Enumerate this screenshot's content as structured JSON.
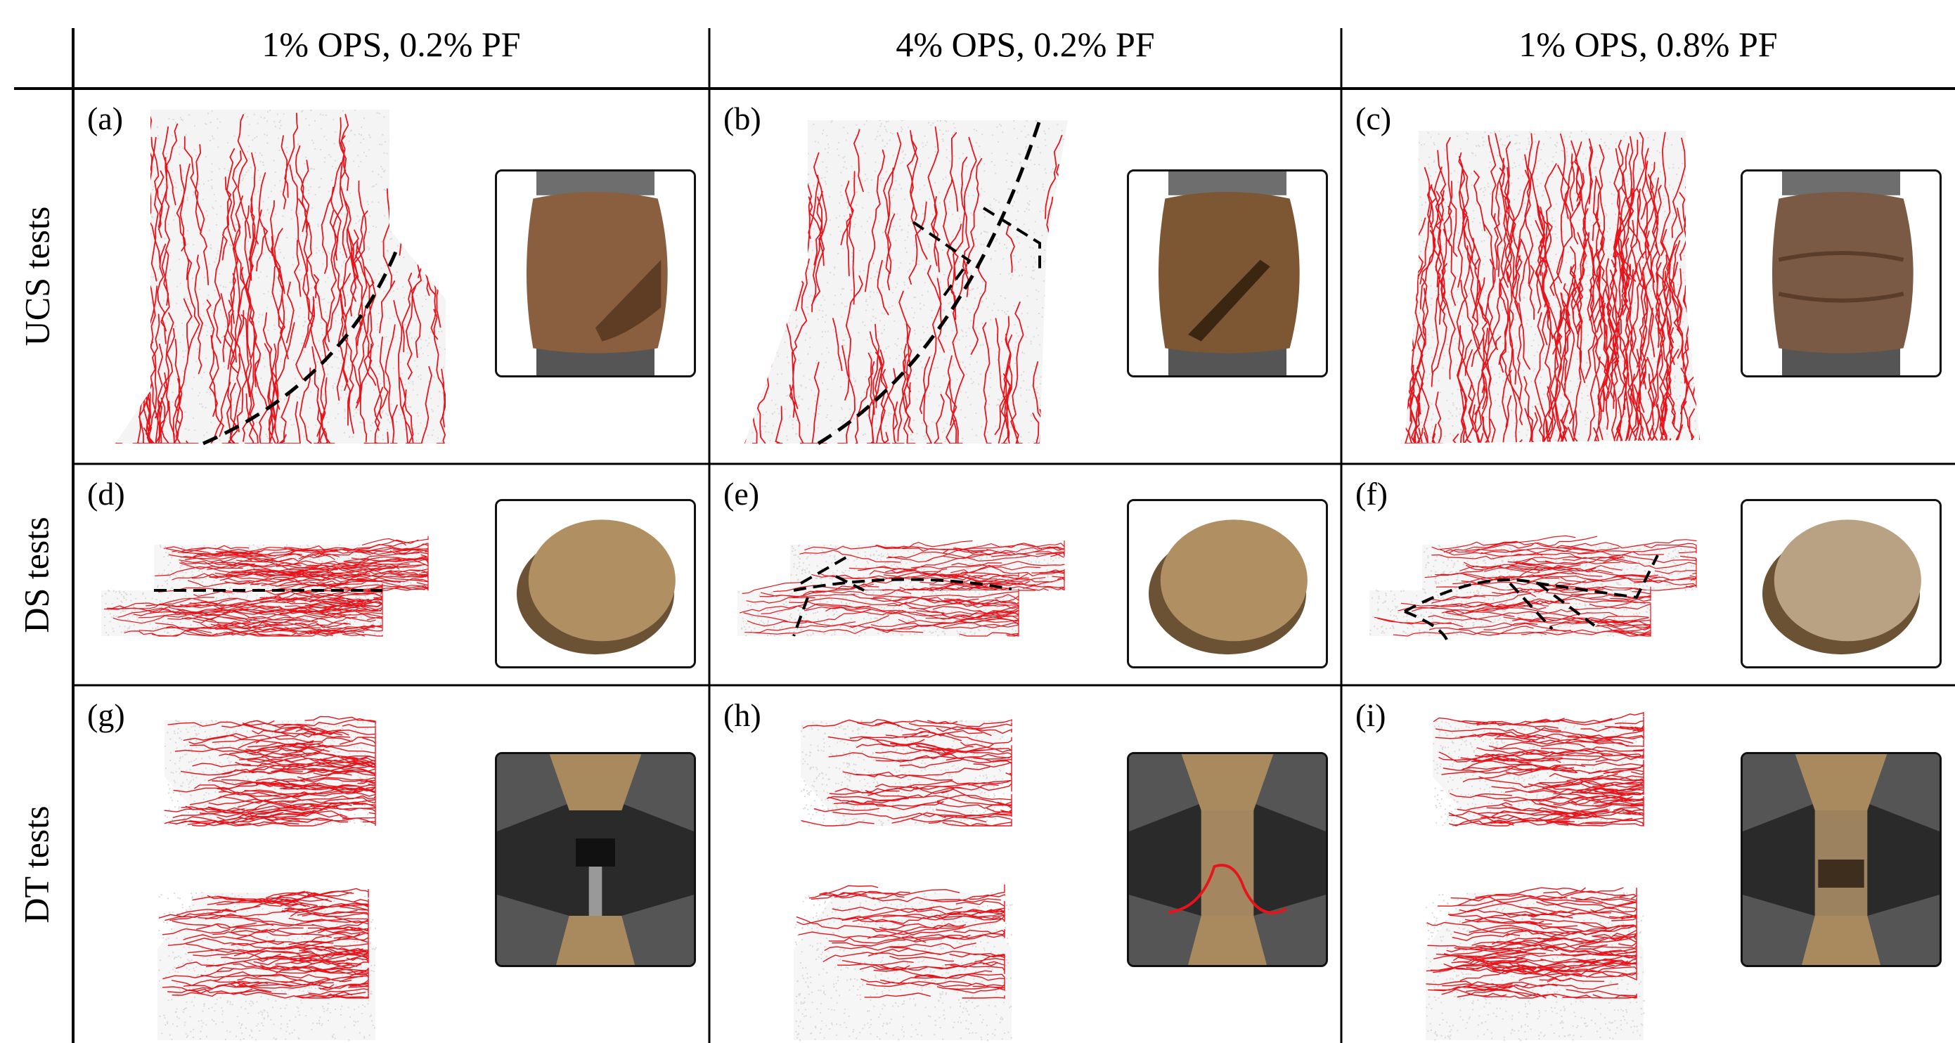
{
  "columns": [
    "1% OPS, 0.2% PF",
    "4% OPS, 0.2% PF",
    "1% OPS, 0.8% PF"
  ],
  "rows": [
    "UCS tests",
    "DS tests",
    "DT tests"
  ],
  "panels": [
    {
      "label": "(a)",
      "kind": "ucs"
    },
    {
      "label": "(b)",
      "kind": "ucs"
    },
    {
      "label": "(c)",
      "kind": "ucs"
    },
    {
      "label": "(d)",
      "kind": "ds"
    },
    {
      "label": "(e)",
      "kind": "ds"
    },
    {
      "label": "(f)",
      "kind": "ds"
    },
    {
      "label": "(g)",
      "kind": "dt"
    },
    {
      "label": "(h)",
      "kind": "dt"
    },
    {
      "label": "(i)",
      "kind": "dt"
    }
  ],
  "colors": {
    "crack": "#e8141c",
    "particles": "#d9d9d9",
    "soil": "#8a5f3f",
    "sand": "#b08f62",
    "steel": "#6e6e6e",
    "dashed": "#000000"
  }
}
